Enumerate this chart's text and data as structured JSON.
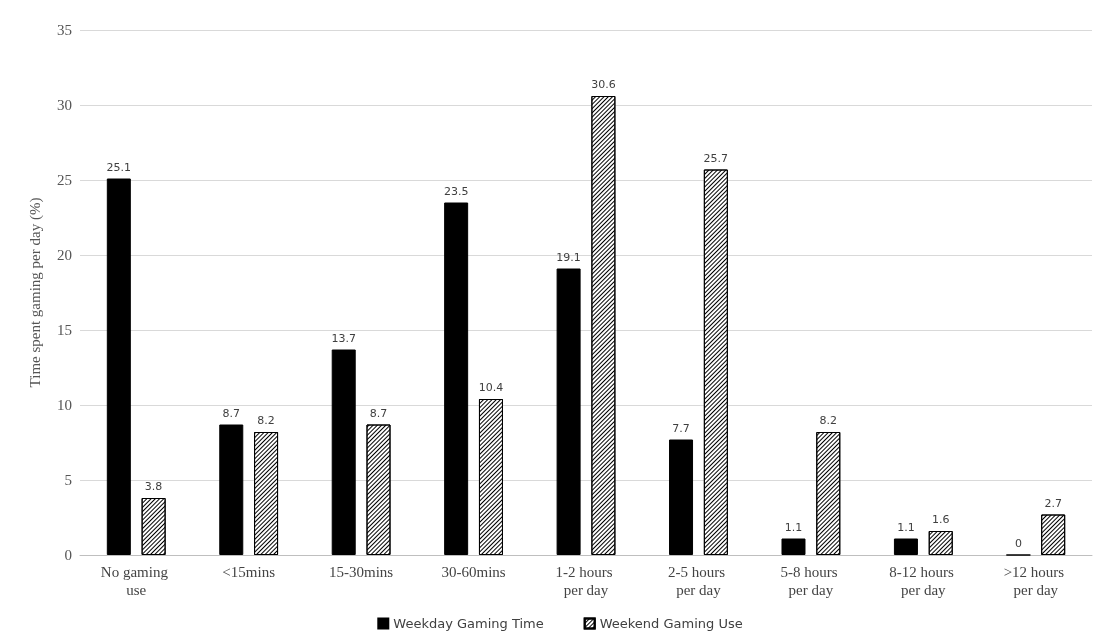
{
  "chart_data": {
    "type": "bar",
    "ylabel": "Time spent gaming per day (%)",
    "categories": [
      "No gaming use",
      "<15mins",
      "15-30mins",
      "30-60mins",
      "1-2 hours per day",
      "2-5 hours per day",
      "5-8 hours per day",
      "8-12 hours per day",
      ">12 hours per day"
    ],
    "series": [
      {
        "name": "Weekday Gaming Time",
        "color": "#000000",
        "values": [
          25.1,
          8.7,
          13.7,
          23.5,
          19.1,
          7.7,
          1.1,
          1.1,
          0
        ]
      },
      {
        "name": "Weekend Gaming Use",
        "color": "#ffffff",
        "values": [
          3.8,
          8.2,
          8.7,
          10.4,
          30.6,
          25.7,
          8.2,
          1.6,
          2.7
        ]
      }
    ],
    "ylim": [
      0,
      35
    ],
    "yticks": [
      0,
      5,
      10,
      15,
      20,
      25,
      30,
      35
    ],
    "grid": "y",
    "legend": "bottom",
    "data_labels": true
  }
}
